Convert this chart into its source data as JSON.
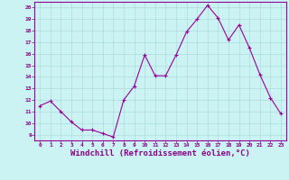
{
  "x": [
    0,
    1,
    2,
    3,
    4,
    5,
    6,
    7,
    8,
    9,
    10,
    11,
    12,
    13,
    14,
    15,
    16,
    17,
    18,
    19,
    20,
    21,
    22,
    23
  ],
  "y": [
    11.5,
    11.9,
    11.0,
    10.1,
    9.4,
    9.4,
    9.1,
    8.8,
    12.0,
    13.2,
    15.9,
    14.1,
    14.1,
    15.9,
    17.9,
    19.0,
    20.2,
    19.1,
    17.2,
    18.5,
    16.5,
    14.2,
    12.2,
    10.8
  ],
  "line_color": "#990099",
  "marker": "+",
  "markersize": 3,
  "linewidth": 0.8,
  "xlabel": "Windchill (Refroidissement éolien,°C)",
  "xlabel_fontsize": 6.5,
  "bg_color": "#cbf3f3",
  "grid_color": "#aadddd",
  "axis_label_color": "#880088",
  "tick_label_color": "#880088",
  "xlim": [
    -0.5,
    23.5
  ],
  "ylim": [
    8.5,
    20.5
  ],
  "yticks": [
    9,
    10,
    11,
    12,
    13,
    14,
    15,
    16,
    17,
    18,
    19,
    20
  ],
  "xticks": [
    0,
    1,
    2,
    3,
    4,
    5,
    6,
    7,
    8,
    9,
    10,
    11,
    12,
    13,
    14,
    15,
    16,
    17,
    18,
    19,
    20,
    21,
    22,
    23
  ]
}
